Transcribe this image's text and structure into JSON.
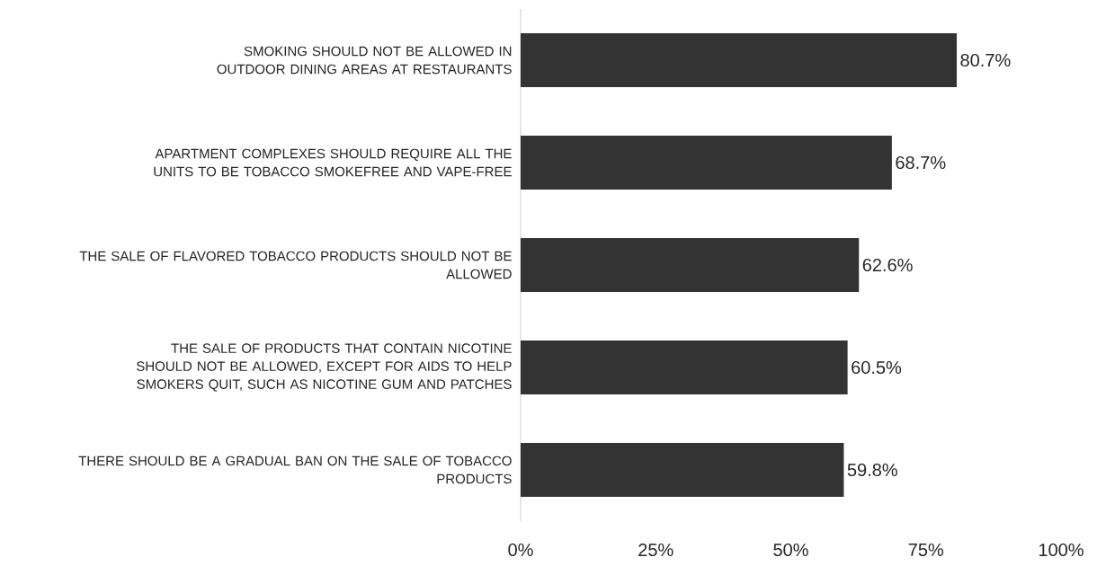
{
  "chart_data": {
    "type": "bar",
    "orientation": "horizontal",
    "categories": [
      "SMOKING SHOULD NOT BE ALLOWED IN OUTDOOR DINING AREAS AT RESTAURANTS",
      "APARTMENT COMPLEXES SHOULD REQUIRE ALL THE UNITS TO BE TOBACCO SMOKEFREE AND VAPE-FREE",
      "THE SALE OF FLAVORED TOBACCO PRODUCTS SHOULD NOT BE ALLOWED",
      "THE SALE OF PRODUCTS THAT CONTAIN NICOTINE SHOULD NOT BE ALLOWED, EXCEPT FOR AIDS TO HELP SMOKERS QUIT, SUCH AS NICOTINE GUM AND PATCHES",
      "THERE SHOULD BE A GRADUAL BAN ON THE SALE OF TOBACCO PRODUCTS"
    ],
    "values": [
      80.7,
      68.7,
      62.6,
      60.5,
      59.8
    ],
    "value_labels": [
      "80.7%",
      "68.7%",
      "62.6%",
      "60.5%",
      "59.8%"
    ],
    "color": "#333333",
    "xlim": [
      0,
      100
    ],
    "xticks": [
      {
        "value": 0,
        "label": "0%"
      },
      {
        "value": 25,
        "label": "25%"
      },
      {
        "value": 50,
        "label": "50%"
      },
      {
        "value": 75,
        "label": "75%"
      },
      {
        "value": 100,
        "label": "100%"
      }
    ]
  }
}
